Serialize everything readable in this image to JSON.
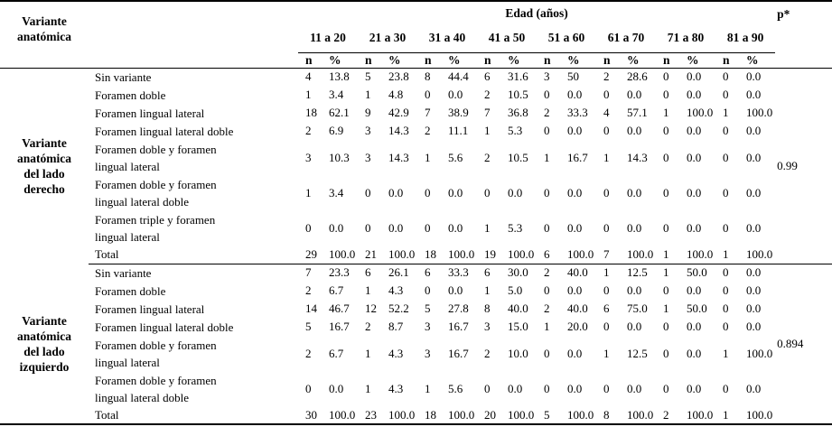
{
  "table": {
    "corner_header": "Variante\nanatómica",
    "edad_header": "Edad (años)",
    "p_header": "p*",
    "age_ranges": [
      "11 a 20",
      "21 a 30",
      "31 a 40",
      "41 a 50",
      "51 a 60",
      "61 a 70",
      "71 a 80",
      "81 a 90"
    ],
    "sub_headers": {
      "n": "n",
      "pct": "%"
    },
    "groups": [
      {
        "label": "Variante\nanatómica\ndel lado\nderecho",
        "p_value": "0.99",
        "rows": [
          {
            "name": "Sin variante",
            "cells": [
              "4",
              "13.8",
              "5",
              "23.8",
              "8",
              "44.4",
              "6",
              "31.6",
              "3",
              "50",
              "2",
              "28.6",
              "0",
              "0.0",
              "0",
              "0.0"
            ]
          },
          {
            "name": "Foramen doble",
            "cells": [
              "1",
              "3.4",
              "1",
              "4.8",
              "0",
              "0.0",
              "2",
              "10.5",
              "0",
              "0.0",
              "0",
              "0.0",
              "0",
              "0.0",
              "0",
              "0.0"
            ]
          },
          {
            "name": "Foramen lingual lateral",
            "cells": [
              "18",
              "62.1",
              "9",
              "42.9",
              "7",
              "38.9",
              "7",
              "36.8",
              "2",
              "33.3",
              "4",
              "57.1",
              "1",
              "100.0",
              "1",
              "100.0"
            ]
          },
          {
            "name": "Foramen lingual lateral doble",
            "cells": [
              "2",
              "6.9",
              "3",
              "14.3",
              "2",
              "11.1",
              "1",
              "5.3",
              "0",
              "0.0",
              "0",
              "0.0",
              "0",
              "0.0",
              "0",
              "0.0"
            ]
          },
          {
            "name": "Foramen doble y foramen\nlingual lateral",
            "cells": [
              "3",
              "10.3",
              "3",
              "14.3",
              "1",
              "5.6",
              "2",
              "10.5",
              "1",
              "16.7",
              "1",
              "14.3",
              "0",
              "0.0",
              "0",
              "0.0"
            ]
          },
          {
            "name": "Foramen doble y foramen\nlingual lateral doble",
            "cells": [
              "1",
              "3.4",
              "0",
              "0.0",
              "0",
              "0.0",
              "0",
              "0.0",
              "0",
              "0.0",
              "0",
              "0.0",
              "0",
              "0.0",
              "0",
              "0.0"
            ]
          },
          {
            "name": "Foramen triple y foramen\nlingual lateral",
            "cells": [
              "0",
              "0.0",
              "0",
              "0.0",
              "0",
              "0.0",
              "1",
              "5.3",
              "0",
              "0.0",
              "0",
              "0.0",
              "0",
              "0.0",
              "0",
              "0.0"
            ]
          },
          {
            "name": "Total",
            "cells": [
              "29",
              "100.0",
              "21",
              "100.0",
              "18",
              "100.0",
              "19",
              "100.0",
              "6",
              "100.0",
              "7",
              "100.0",
              "1",
              "100.0",
              "1",
              "100.0"
            ]
          }
        ]
      },
      {
        "label": "Variante\nanatómica\ndel lado\nizquierdo",
        "p_value": "0.894",
        "rows": [
          {
            "name": "Sin variante",
            "cells": [
              "7",
              "23.3",
              "6",
              "26.1",
              "6",
              "33.3",
              "6",
              "30.0",
              "2",
              "40.0",
              "1",
              "12.5",
              "1",
              "50.0",
              "0",
              "0.0"
            ]
          },
          {
            "name": "Foramen doble",
            "cells": [
              "2",
              "6.7",
              "1",
              "4.3",
              "0",
              "0.0",
              "1",
              "5.0",
              "0",
              "0.0",
              "0",
              "0.0",
              "0",
              "0.0",
              "0",
              "0.0"
            ]
          },
          {
            "name": "Foramen lingual lateral",
            "cells": [
              "14",
              "46.7",
              "12",
              "52.2",
              "5",
              "27.8",
              "8",
              "40.0",
              "2",
              "40.0",
              "6",
              "75.0",
              "1",
              "50.0",
              "0",
              "0.0"
            ]
          },
          {
            "name": "Foramen lingual lateral doble",
            "cells": [
              "5",
              "16.7",
              "2",
              "8.7",
              "3",
              "16.7",
              "3",
              "15.0",
              "1",
              "20.0",
              "0",
              "0.0",
              "0",
              "0.0",
              "0",
              "0.0"
            ]
          },
          {
            "name": "Foramen doble y foramen\nlingual lateral",
            "cells": [
              "2",
              "6.7",
              "1",
              "4.3",
              "3",
              "16.7",
              "2",
              "10.0",
              "0",
              "0.0",
              "1",
              "12.5",
              "0",
              "0.0",
              "1",
              "100.0"
            ]
          },
          {
            "name": "Foramen doble y foramen\nlingual lateral doble",
            "cells": [
              "0",
              "0.0",
              "1",
              "4.3",
              "1",
              "5.6",
              "0",
              "0.0",
              "0",
              "0.0",
              "0",
              "0.0",
              "0",
              "0.0",
              "0",
              "0.0"
            ]
          },
          {
            "name": "Total",
            "cells": [
              "30",
              "100.0",
              "23",
              "100.0",
              "18",
              "100.0",
              "20",
              "100.0",
              "5",
              "100.0",
              "8",
              "100.0",
              "2",
              "100.0",
              "1",
              "100.0"
            ]
          }
        ]
      }
    ]
  }
}
